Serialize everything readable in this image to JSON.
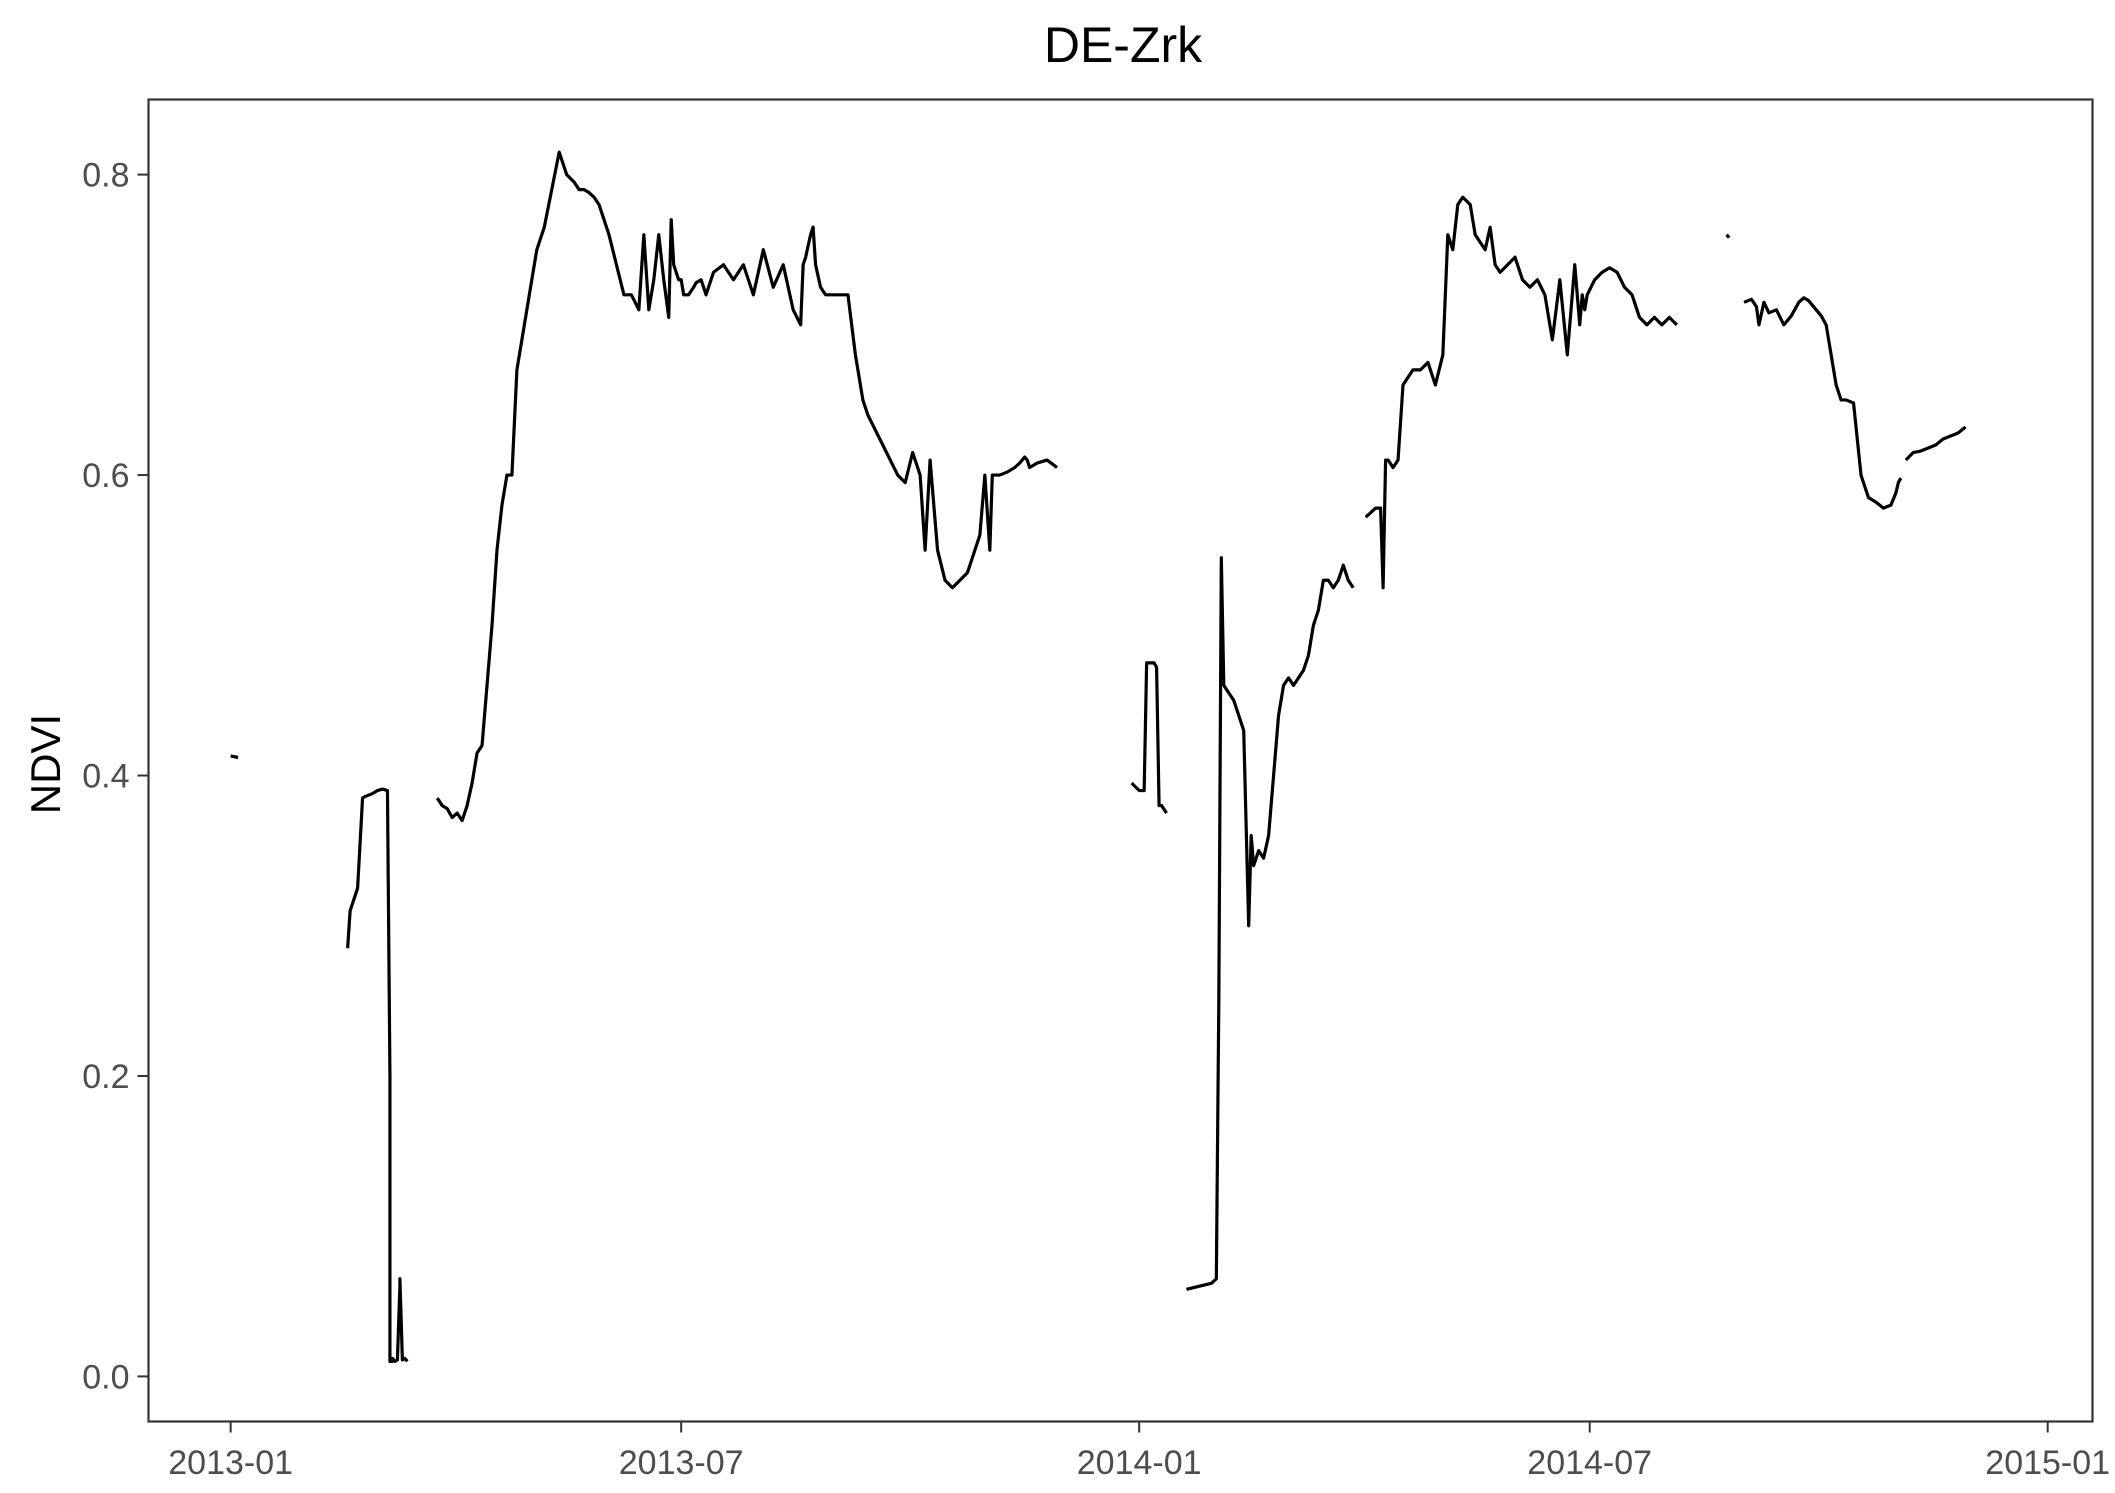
{
  "chart_data": {
    "type": "line",
    "title": "DE-Zrk",
    "xlabel": "",
    "ylabel": "NDVI",
    "xlim": [
      "2012-11-29",
      "2015-01-19"
    ],
    "ylim": [
      -0.03,
      0.85
    ],
    "x_ticks": [
      "2013-01",
      "2013-07",
      "2014-01",
      "2014-07",
      "2015-01"
    ],
    "y_ticks": [
      "0.0",
      "0.2",
      "0.4",
      "0.6",
      "0.8"
    ],
    "grid": false,
    "legend": "none",
    "series": [
      {
        "segments": [
          {
            "x": [
              "2013-01-01",
              "2013-01-04"
            ],
            "y": [
              0.413,
              0.412
            ]
          },
          {
            "x": [
              "2013-02-17",
              "2013-02-18",
              "2013-02-19",
              "2013-02-21",
              "2013-02-23",
              "2013-02-24",
              "2013-02-27",
              "2013-03-01",
              "2013-03-03",
              "2013-03-05",
              "2013-03-06",
              "2013-03-06",
              "2013-03-07",
              "2013-03-07",
              "2013-03-08",
              "2013-03-09",
              "2013-03-10",
              "2013-03-10",
              "2013-03-11",
              "2013-03-12",
              "2013-03-13"
            ],
            "y": [
              0.285,
              0.31,
              0.315,
              0.325,
              0.385,
              0.386,
              0.388,
              0.39,
              0.391,
              0.39,
              0.2,
              0.01,
              0.01,
              0.012,
              0.01,
              0.011,
              0.06,
              0.065,
              0.011,
              0.012,
              0.01
            ]
          },
          {
            "x": [
              "2013-03-25",
              "2013-03-27",
              "2013-03-29",
              "2013-03-31",
              "2013-04-02",
              "2013-04-04",
              "2013-04-06",
              "2013-04-08",
              "2013-04-10",
              "2013-04-12",
              "2013-04-14",
              "2013-04-16",
              "2013-04-18",
              "2013-04-20",
              "2013-04-22",
              "2013-04-24",
              "2013-04-26",
              "2013-04-28",
              "2013-05-01",
              "2013-05-04",
              "2013-05-07",
              "2013-05-10",
              "2013-05-13",
              "2013-05-16",
              "2013-05-19",
              "2013-05-21",
              "2013-05-23",
              "2013-05-25",
              "2013-05-27",
              "2013-05-29",
              "2013-05-31",
              "2013-06-02",
              "2013-06-05",
              "2013-06-08",
              "2013-06-11",
              "2013-06-14",
              "2013-06-16",
              "2013-06-18",
              "2013-06-20",
              "2013-06-22",
              "2013-06-24",
              "2013-06-26",
              "2013-06-27",
              "2013-06-28",
              "2013-06-30",
              "2013-07-01",
              "2013-07-02",
              "2013-07-04",
              "2013-07-06",
              "2013-07-07",
              "2013-07-09",
              "2013-07-11",
              "2013-07-14",
              "2013-07-18",
              "2013-07-22",
              "2013-07-26",
              "2013-07-30",
              "2013-08-03",
              "2013-08-07",
              "2013-08-11",
              "2013-08-15",
              "2013-08-18",
              "2013-08-19",
              "2013-08-20",
              "2013-08-22",
              "2013-08-23",
              "2013-08-24",
              "2013-08-26",
              "2013-08-28",
              "2013-08-31",
              "2013-09-03",
              "2013-09-06",
              "2013-09-09",
              "2013-09-12",
              "2013-09-14",
              "2013-09-17",
              "2013-09-20",
              "2013-09-23",
              "2013-09-26",
              "2013-09-29",
              "2013-10-02",
              "2013-10-05",
              "2013-10-07",
              "2013-10-09",
              "2013-10-12",
              "2013-10-15",
              "2013-10-18",
              "2013-10-21",
              "2013-10-24",
              "2013-10-27",
              "2013-10-29",
              "2013-10-30",
              "2013-10-31",
              "2013-11-01",
              "2013-11-02",
              "2013-11-03",
              "2013-11-06",
              "2013-11-09",
              "2013-11-12",
              "2013-11-14",
              "2013-11-15",
              "2013-11-16",
              "2013-11-17",
              "2013-11-18",
              "2013-11-21",
              "2013-11-25",
              "2013-11-29"
            ],
            "y": [
              0.385,
              0.38,
              0.378,
              0.372,
              0.375,
              0.37,
              0.38,
              0.395,
              0.415,
              0.42,
              0.46,
              0.5,
              0.55,
              0.58,
              0.6,
              0.6,
              0.67,
              0.69,
              0.72,
              0.75,
              0.765,
              0.79,
              0.815,
              0.8,
              0.795,
              0.79,
              0.79,
              0.788,
              0.785,
              0.78,
              0.77,
              0.76,
              0.74,
              0.72,
              0.72,
              0.71,
              0.76,
              0.71,
              0.73,
              0.76,
              0.73,
              0.705,
              0.77,
              0.74,
              0.73,
              0.73,
              0.72,
              0.72,
              0.725,
              0.728,
              0.73,
              0.72,
              0.735,
              0.74,
              0.73,
              0.74,
              0.72,
              0.75,
              0.725,
              0.74,
              0.71,
              0.7,
              0.74,
              0.745,
              0.76,
              0.765,
              0.74,
              0.725,
              0.72,
              0.72,
              0.72,
              0.72,
              0.68,
              0.65,
              0.64,
              0.63,
              0.62,
              0.61,
              0.6,
              0.595,
              0.615,
              0.6,
              0.55,
              0.61,
              0.55,
              0.53,
              0.525,
              0.53,
              0.535,
              0.55,
              0.56,
              0.58,
              0.6,
              0.575,
              0.55,
              0.6,
              0.6,
              0.602,
              0.605,
              0.608,
              0.61,
              0.612,
              0.61,
              0.605,
              0.608,
              0.61,
              0.605
            ]
          },
          {
            "x": [
              "2013-12-29",
              "2014-01-01",
              "2014-01-03",
              "2014-01-04",
              "2014-01-07",
              "2014-01-08",
              "2014-01-09",
              "2014-01-10",
              "2014-01-12"
            ],
            "y": [
              0.395,
              0.39,
              0.39,
              0.475,
              0.475,
              0.472,
              0.38,
              0.38,
              0.375
            ]
          },
          {
            "x": [
              "2014-01-20",
              "2014-01-25",
              "2014-01-30",
              "2014-02-01",
              "2014-02-02",
              "2014-02-03",
              "2014-02-04",
              "2014-02-06",
              "2014-02-08",
              "2014-02-10",
              "2014-02-12",
              "2014-02-14",
              "2014-02-15",
              "2014-02-16",
              "2014-02-18",
              "2014-02-20",
              "2014-02-22",
              "2014-02-24",
              "2014-02-26",
              "2014-02-28",
              "2014-03-02",
              "2014-03-04",
              "2014-03-06",
              "2014-03-08",
              "2014-03-10",
              "2014-03-12",
              "2014-03-14",
              "2014-03-16",
              "2014-03-18",
              "2014-03-20",
              "2014-03-22",
              "2014-03-24",
              "2014-03-26",
              "2014-03-28"
            ],
            "y": [
              0.058,
              0.06,
              0.062,
              0.065,
              0.25,
              0.545,
              0.46,
              0.455,
              0.45,
              0.44,
              0.43,
              0.3,
              0.36,
              0.34,
              0.35,
              0.345,
              0.36,
              0.4,
              0.44,
              0.46,
              0.465,
              0.46,
              0.465,
              0.47,
              0.48,
              0.5,
              0.51,
              0.53,
              0.53,
              0.525,
              0.53,
              0.54,
              0.53,
              0.525
            ]
          },
          {
            "x": [
              "2014-04-02",
              "2014-04-04",
              "2014-04-06",
              "2014-04-08",
              "2014-04-09",
              "2014-04-10",
              "2014-04-11",
              "2014-04-13",
              "2014-04-15",
              "2014-04-17",
              "2014-04-19",
              "2014-04-21",
              "2014-04-24",
              "2014-04-27",
              "2014-04-30",
              "2014-05-03",
              "2014-05-05",
              "2014-05-07",
              "2014-05-09",
              "2014-05-11",
              "2014-05-14",
              "2014-05-16",
              "2014-05-18",
              "2014-05-20",
              "2014-05-22",
              "2014-05-24",
              "2014-05-26",
              "2014-05-29",
              "2014-06-01",
              "2014-06-04",
              "2014-06-07",
              "2014-06-10",
              "2014-06-13",
              "2014-06-16",
              "2014-06-19",
              "2014-06-22",
              "2014-06-25",
              "2014-06-27",
              "2014-06-28",
              "2014-06-29",
              "2014-06-30",
              "2014-07-03",
              "2014-07-06",
              "2014-07-09",
              "2014-07-12",
              "2014-07-15",
              "2014-07-18",
              "2014-07-21",
              "2014-07-24",
              "2014-07-27",
              "2014-07-30",
              "2014-08-02",
              "2014-08-05"
            ],
            "y": [
              0.572,
              0.575,
              0.578,
              0.578,
              0.525,
              0.61,
              0.61,
              0.605,
              0.61,
              0.66,
              0.665,
              0.67,
              0.67,
              0.675,
              0.66,
              0.68,
              0.76,
              0.75,
              0.78,
              0.785,
              0.78,
              0.76,
              0.755,
              0.75,
              0.765,
              0.74,
              0.735,
              0.74,
              0.745,
              0.73,
              0.725,
              0.73,
              0.72,
              0.69,
              0.73,
              0.68,
              0.74,
              0.7,
              0.72,
              0.71,
              0.72,
              0.73,
              0.735,
              0.738,
              0.735,
              0.725,
              0.72,
              0.705,
              0.7,
              0.705,
              0.7,
              0.705,
              0.7
            ]
          },
          {
            "x": [
              "2014-08-25",
              "2014-08-26"
            ],
            "y": [
              0.76,
              0.758
            ]
          },
          {
            "x": [
              "2014-09-01",
              "2014-09-04",
              "2014-09-06",
              "2014-09-07",
              "2014-09-09",
              "2014-09-11",
              "2014-09-14",
              "2014-09-17",
              "2014-09-20",
              "2014-09-23",
              "2014-09-25",
              "2014-09-27",
              "2014-09-30",
              "2014-10-02",
              "2014-10-04",
              "2014-10-06",
              "2014-10-08",
              "2014-10-10",
              "2014-10-12",
              "2014-10-15",
              "2014-10-18",
              "2014-10-21",
              "2014-10-24",
              "2014-10-27",
              "2014-10-30",
              "2014-11-01",
              "2014-11-02",
              "2014-11-03"
            ],
            "y": [
              0.715,
              0.717,
              0.712,
              0.7,
              0.715,
              0.708,
              0.71,
              0.7,
              0.706,
              0.715,
              0.718,
              0.716,
              0.71,
              0.706,
              0.7,
              0.68,
              0.66,
              0.65,
              0.65,
              0.648,
              0.6,
              0.585,
              0.582,
              0.578,
              0.58,
              0.588,
              0.595,
              0.598
            ]
          },
          {
            "x": [
              "2014-11-05",
              "2014-11-08",
              "2014-11-11",
              "2014-11-14",
              "2014-11-17",
              "2014-11-20",
              "2014-11-23",
              "2014-11-26",
              "2014-11-29"
            ],
            "y": [
              0.61,
              0.615,
              0.616,
              0.618,
              0.62,
              0.624,
              0.626,
              0.628,
              0.632
            ]
          }
        ]
      }
    ]
  }
}
